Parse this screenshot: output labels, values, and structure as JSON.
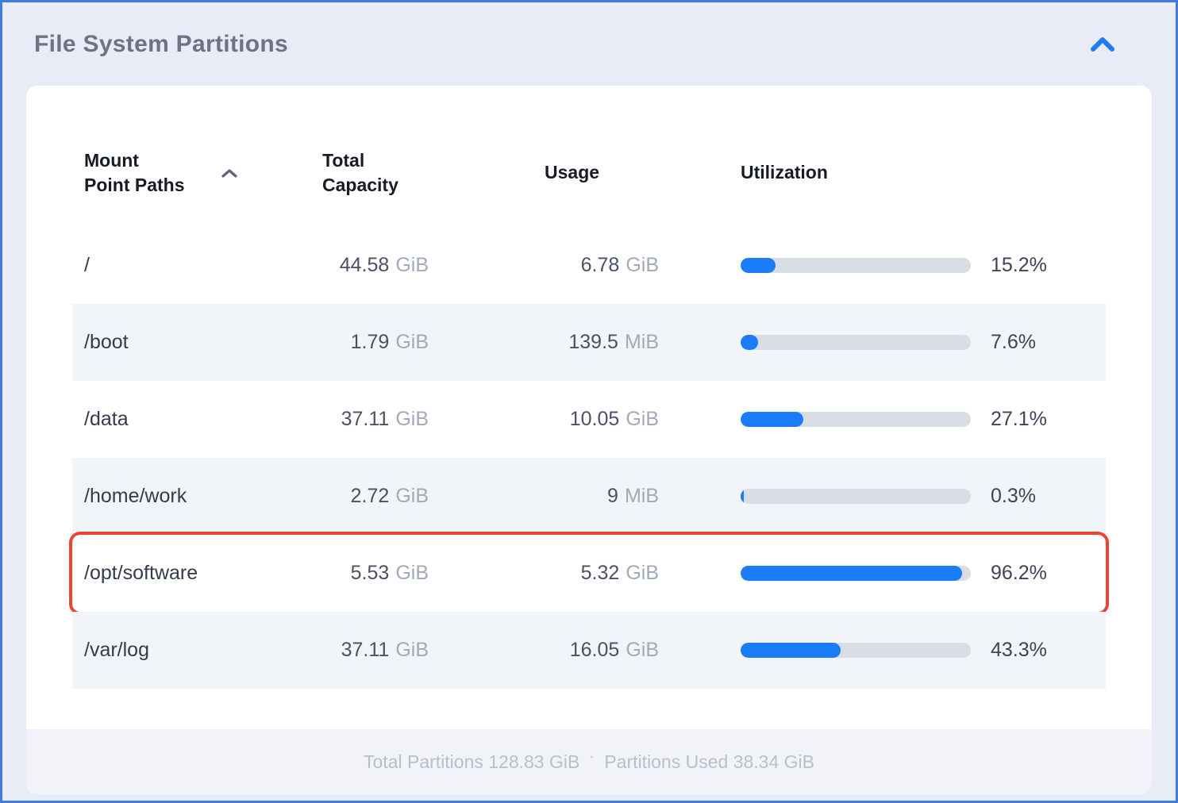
{
  "panel": {
    "title": "File System Partitions",
    "collapse_icon": "chevron-up-icon"
  },
  "colors": {
    "accent_blue": "#1a7cf7",
    "bar_track": "#d9dde6",
    "highlight_red": "#e94435",
    "outer_border_blue": "#3e7ce0",
    "page_background": "#e9ecf6",
    "alt_row_background": "#f1f4f9"
  },
  "table": {
    "columns": [
      {
        "id": "mount",
        "label": "Mount\nPoint Paths",
        "sortable": true,
        "sort_direction": "asc"
      },
      {
        "id": "capacity",
        "label": "Total\nCapacity"
      },
      {
        "id": "usage",
        "label": "Usage"
      },
      {
        "id": "utilization",
        "label": "Utilization"
      }
    ],
    "rows": [
      {
        "mount": "/",
        "capacity_value": "44.58",
        "capacity_unit": "GiB",
        "usage_value": "6.78",
        "usage_unit": "GiB",
        "utilization_pct": 15.2,
        "utilization_label": "15.2%",
        "highlighted": false
      },
      {
        "mount": "/boot",
        "capacity_value": "1.79",
        "capacity_unit": "GiB",
        "usage_value": "139.5",
        "usage_unit": "MiB",
        "utilization_pct": 7.6,
        "utilization_label": "7.6%",
        "highlighted": false
      },
      {
        "mount": "/data",
        "capacity_value": "37.11",
        "capacity_unit": "GiB",
        "usage_value": "10.05",
        "usage_unit": "GiB",
        "utilization_pct": 27.1,
        "utilization_label": "27.1%",
        "highlighted": false
      },
      {
        "mount": "/home/work",
        "capacity_value": "2.72",
        "capacity_unit": "GiB",
        "usage_value": "9",
        "usage_unit": "MiB",
        "utilization_pct": 0.3,
        "utilization_label": "0.3%",
        "highlighted": false
      },
      {
        "mount": "/opt/software",
        "capacity_value": "5.53",
        "capacity_unit": "GiB",
        "usage_value": "5.32",
        "usage_unit": "GiB",
        "utilization_pct": 96.2,
        "utilization_label": "96.2%",
        "highlighted": true
      },
      {
        "mount": "/var/log",
        "capacity_value": "37.11",
        "capacity_unit": "GiB",
        "usage_value": "16.05",
        "usage_unit": "GiB",
        "utilization_pct": 43.3,
        "utilization_label": "43.3%",
        "highlighted": false
      }
    ]
  },
  "footer": {
    "total": "Total Partitions 128.83 GiB",
    "separator": "·",
    "used": "Partitions Used 38.34 GiB"
  }
}
